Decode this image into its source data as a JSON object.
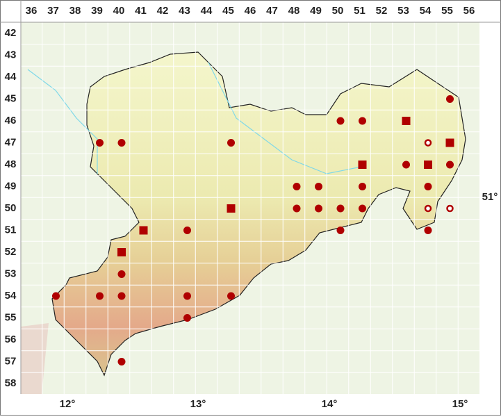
{
  "column_labels": [
    "36",
    "37",
    "38",
    "39",
    "40",
    "41",
    "42",
    "43",
    "44",
    "45",
    "46",
    "47",
    "48",
    "49",
    "50",
    "51",
    "52",
    "53",
    "54",
    "55",
    "56"
  ],
  "row_labels": [
    "42",
    "43",
    "44",
    "45",
    "46",
    "47",
    "48",
    "49",
    "50",
    "51",
    "52",
    "53",
    "54",
    "55",
    "56",
    "57",
    "58"
  ],
  "longitude_labels": [
    "12°",
    "13°",
    "14°",
    "15°"
  ],
  "latitude_label": "51°",
  "records": [
    {
      "column": 55,
      "row": 45,
      "symbol": "dot"
    },
    {
      "column": 50,
      "row": 46,
      "symbol": "dot"
    },
    {
      "column": 51,
      "row": 46,
      "symbol": "dot"
    },
    {
      "column": 53,
      "row": 46,
      "symbol": "square"
    },
    {
      "column": 39,
      "row": 47,
      "symbol": "dot"
    },
    {
      "column": 40,
      "row": 47,
      "symbol": "dot"
    },
    {
      "column": 45,
      "row": 47,
      "symbol": "dot"
    },
    {
      "column": 54,
      "row": 47,
      "symbol": "open"
    },
    {
      "column": 55,
      "row": 47,
      "symbol": "square"
    },
    {
      "column": 51,
      "row": 48,
      "symbol": "square"
    },
    {
      "column": 53,
      "row": 48,
      "symbol": "dot"
    },
    {
      "column": 54,
      "row": 48,
      "symbol": "square"
    },
    {
      "column": 55,
      "row": 48,
      "symbol": "dot"
    },
    {
      "column": 48,
      "row": 49,
      "symbol": "dot"
    },
    {
      "column": 49,
      "row": 49,
      "symbol": "dot"
    },
    {
      "column": 51,
      "row": 49,
      "symbol": "dot"
    },
    {
      "column": 54,
      "row": 49,
      "symbol": "dot"
    },
    {
      "column": 45,
      "row": 50,
      "symbol": "square"
    },
    {
      "column": 48,
      "row": 50,
      "symbol": "dot"
    },
    {
      "column": 49,
      "row": 50,
      "symbol": "dot"
    },
    {
      "column": 50,
      "row": 50,
      "symbol": "dot"
    },
    {
      "column": 51,
      "row": 50,
      "symbol": "dot"
    },
    {
      "column": 54,
      "row": 50,
      "symbol": "open"
    },
    {
      "column": 55,
      "row": 50,
      "symbol": "open"
    },
    {
      "column": 41,
      "row": 51,
      "symbol": "square"
    },
    {
      "column": 43,
      "row": 51,
      "symbol": "dot"
    },
    {
      "column": 50,
      "row": 51,
      "symbol": "dot"
    },
    {
      "column": 54,
      "row": 51,
      "symbol": "dot"
    },
    {
      "column": 40,
      "row": 52,
      "symbol": "square"
    },
    {
      "column": 40,
      "row": 53,
      "symbol": "dot"
    },
    {
      "column": 37,
      "row": 54,
      "symbol": "dot"
    },
    {
      "column": 39,
      "row": 54,
      "symbol": "dot"
    },
    {
      "column": 40,
      "row": 54,
      "symbol": "dot"
    },
    {
      "column": 43,
      "row": 54,
      "symbol": "dot"
    },
    {
      "column": 45,
      "row": 54,
      "symbol": "dot"
    },
    {
      "column": 43,
      "row": 55,
      "symbol": "dot"
    },
    {
      "column": 40,
      "row": 57,
      "symbol": "dot"
    }
  ]
}
